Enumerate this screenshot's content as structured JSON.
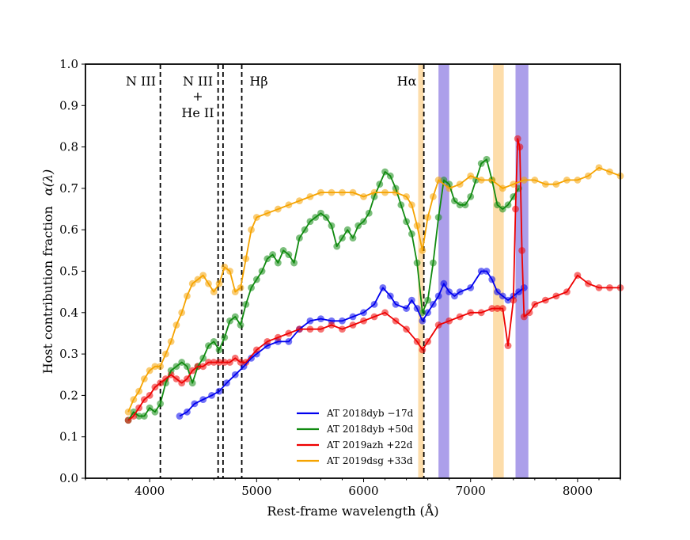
{
  "chart_data": {
    "type": "scatter",
    "xlabel": "Rest-frame wavelength (Å)",
    "ylabel_text": "Host contribution fraction",
    "ylabel_symbol": "α(λ)",
    "xlim": [
      3400,
      8400
    ],
    "ylim": [
      0.0,
      1.0
    ],
    "xticks": [
      "4000",
      "5000",
      "6000",
      "7000",
      "8000"
    ],
    "xtick_values": [
      4000,
      5000,
      6000,
      7000,
      8000
    ],
    "yticks": [
      "0.0",
      "0.1",
      "0.2",
      "0.3",
      "0.4",
      "0.5",
      "0.6",
      "0.7",
      "0.8",
      "0.9",
      "1.0"
    ],
    "ytick_values": [
      0.0,
      0.1,
      0.2,
      0.3,
      0.4,
      0.5,
      0.6,
      0.7,
      0.8,
      0.9,
      1.0
    ],
    "line_annotations": [
      {
        "label": "N III",
        "x": 4100
      },
      {
        "label": "N III",
        "x": 4640
      },
      {
        "label": "",
        "x": 4686
      },
      {
        "label": "Hβ",
        "x": 4861
      },
      {
        "label": "Hα",
        "x": 6563
      }
    ],
    "text_annotations": {
      "n3_left": "N III",
      "n3_mid": "N III",
      "plus": "+",
      "he2": "He II",
      "hbeta": "Hβ",
      "halpha": "Hα"
    },
    "shaded_bands": [
      {
        "x0": 6510,
        "x1": 6560,
        "color": "#fdd79b"
      },
      {
        "x0": 6700,
        "x1": 6800,
        "color": "#9d8ee6"
      },
      {
        "x0": 7210,
        "x1": 7310,
        "color": "#fdd79b"
      },
      {
        "x0": 7420,
        "x1": 7540,
        "color": "#9d8ee6"
      }
    ],
    "series": [
      {
        "name": "AT 2018dyb −17d",
        "color": "#0000ee",
        "x": [
          4280,
          4350,
          4420,
          4500,
          4580,
          4650,
          4720,
          4800,
          4880,
          4950,
          5000,
          5100,
          5200,
          5300,
          5400,
          5500,
          5600,
          5700,
          5800,
          5900,
          6000,
          6100,
          6180,
          6250,
          6300,
          6400,
          6450,
          6500,
          6550,
          6600,
          6650,
          6700,
          6750,
          6800,
          6850,
          6900,
          7000,
          7100,
          7150,
          7200,
          7250,
          7300,
          7350,
          7400,
          7450,
          7500
        ],
        "values": [
          0.15,
          0.16,
          0.18,
          0.19,
          0.2,
          0.21,
          0.23,
          0.25,
          0.27,
          0.29,
          0.3,
          0.32,
          0.33,
          0.33,
          0.36,
          0.38,
          0.385,
          0.38,
          0.38,
          0.39,
          0.4,
          0.42,
          0.46,
          0.44,
          0.42,
          0.41,
          0.43,
          0.41,
          0.38,
          0.4,
          0.42,
          0.44,
          0.47,
          0.45,
          0.44,
          0.45,
          0.46,
          0.5,
          0.5,
          0.48,
          0.45,
          0.44,
          0.43,
          0.44,
          0.45,
          0.46
        ]
      },
      {
        "name": "AT 2018dyb +50d",
        "color": "#108a10",
        "x": [
          3800,
          3850,
          3900,
          3950,
          4000,
          4050,
          4100,
          4150,
          4200,
          4250,
          4300,
          4350,
          4400,
          4450,
          4500,
          4550,
          4600,
          4650,
          4700,
          4750,
          4800,
          4850,
          4900,
          4950,
          5000,
          5050,
          5100,
          5150,
          5200,
          5250,
          5300,
          5350,
          5400,
          5450,
          5500,
          5550,
          5600,
          5650,
          5700,
          5750,
          5800,
          5850,
          5900,
          5950,
          6000,
          6050,
          6100,
          6150,
          6200,
          6250,
          6300,
          6350,
          6400,
          6450,
          6500,
          6550,
          6600,
          6650,
          6700,
          6750,
          6800,
          6850,
          6900,
          6950,
          7000,
          7050,
          7100,
          7150,
          7200,
          7250,
          7300,
          7350,
          7400,
          7450
        ],
        "values": [
          0.14,
          0.16,
          0.15,
          0.15,
          0.17,
          0.16,
          0.18,
          0.23,
          0.26,
          0.27,
          0.28,
          0.27,
          0.23,
          0.27,
          0.29,
          0.32,
          0.33,
          0.31,
          0.34,
          0.38,
          0.39,
          0.37,
          0.42,
          0.46,
          0.48,
          0.5,
          0.53,
          0.54,
          0.52,
          0.55,
          0.54,
          0.52,
          0.58,
          0.6,
          0.62,
          0.63,
          0.64,
          0.63,
          0.61,
          0.56,
          0.58,
          0.6,
          0.58,
          0.61,
          0.62,
          0.64,
          0.68,
          0.71,
          0.74,
          0.73,
          0.7,
          0.66,
          0.62,
          0.59,
          0.52,
          0.4,
          0.43,
          0.52,
          0.63,
          0.72,
          0.71,
          0.67,
          0.66,
          0.66,
          0.68,
          0.72,
          0.76,
          0.77,
          0.72,
          0.66,
          0.65,
          0.66,
          0.68,
          0.7
        ]
      },
      {
        "name": "AT 2019azh +22d",
        "color": "#ee0000",
        "x": [
          3800,
          3850,
          3900,
          3950,
          4000,
          4050,
          4100,
          4150,
          4200,
          4250,
          4300,
          4350,
          4400,
          4450,
          4500,
          4550,
          4600,
          4650,
          4700,
          4750,
          4800,
          4850,
          4900,
          5000,
          5100,
          5200,
          5300,
          5400,
          5500,
          5600,
          5700,
          5800,
          5900,
          6000,
          6100,
          6200,
          6300,
          6400,
          6500,
          6550,
          6600,
          6700,
          6800,
          6900,
          7000,
          7100,
          7200,
          7250,
          7300,
          7350,
          7400,
          7420,
          7440,
          7460,
          7480,
          7500,
          7550,
          7600,
          7700,
          7800,
          7900,
          8000,
          8100,
          8200,
          8300,
          8400
        ],
        "values": [
          0.14,
          0.15,
          0.17,
          0.19,
          0.2,
          0.22,
          0.23,
          0.24,
          0.25,
          0.24,
          0.23,
          0.24,
          0.26,
          0.27,
          0.27,
          0.28,
          0.28,
          0.28,
          0.28,
          0.28,
          0.29,
          0.28,
          0.28,
          0.31,
          0.33,
          0.34,
          0.35,
          0.36,
          0.36,
          0.36,
          0.37,
          0.36,
          0.37,
          0.38,
          0.39,
          0.4,
          0.38,
          0.36,
          0.33,
          0.31,
          0.33,
          0.37,
          0.38,
          0.39,
          0.4,
          0.4,
          0.41,
          0.41,
          0.41,
          0.32,
          0.43,
          0.65,
          0.82,
          0.8,
          0.55,
          0.39,
          0.4,
          0.42,
          0.43,
          0.44,
          0.45,
          0.49,
          0.47,
          0.46,
          0.46,
          0.46
        ]
      },
      {
        "name": "AT 2019dsg +33d",
        "color": "#f5a300",
        "x": [
          3800,
          3850,
          3900,
          3950,
          4000,
          4050,
          4100,
          4150,
          4200,
          4250,
          4300,
          4350,
          4400,
          4450,
          4500,
          4550,
          4600,
          4650,
          4700,
          4750,
          4800,
          4850,
          4900,
          4950,
          5000,
          5100,
          5200,
          5300,
          5400,
          5500,
          5600,
          5700,
          5800,
          5900,
          6000,
          6100,
          6200,
          6300,
          6400,
          6450,
          6500,
          6550,
          6600,
          6650,
          6700,
          6800,
          6900,
          7000,
          7100,
          7200,
          7300,
          7400,
          7500,
          7600,
          7700,
          7800,
          7900,
          8000,
          8100,
          8200,
          8300,
          8400
        ],
        "values": [
          0.16,
          0.19,
          0.21,
          0.24,
          0.26,
          0.27,
          0.27,
          0.3,
          0.33,
          0.37,
          0.4,
          0.44,
          0.47,
          0.48,
          0.49,
          0.47,
          0.45,
          0.47,
          0.51,
          0.5,
          0.45,
          0.46,
          0.53,
          0.6,
          0.63,
          0.64,
          0.65,
          0.66,
          0.67,
          0.68,
          0.69,
          0.69,
          0.69,
          0.69,
          0.68,
          0.69,
          0.69,
          0.69,
          0.68,
          0.66,
          0.61,
          0.55,
          0.63,
          0.68,
          0.72,
          0.7,
          0.71,
          0.73,
          0.72,
          0.72,
          0.7,
          0.71,
          0.72,
          0.72,
          0.71,
          0.71,
          0.72,
          0.72,
          0.73,
          0.75,
          0.74,
          0.73
        ]
      }
    ],
    "legend": {
      "placement": "bottom-center",
      "entries": [
        "AT 2018dyb −17d",
        "AT 2018dyb +50d",
        "AT 2019azh +22d",
        "AT 2019dsg +33d"
      ]
    }
  }
}
